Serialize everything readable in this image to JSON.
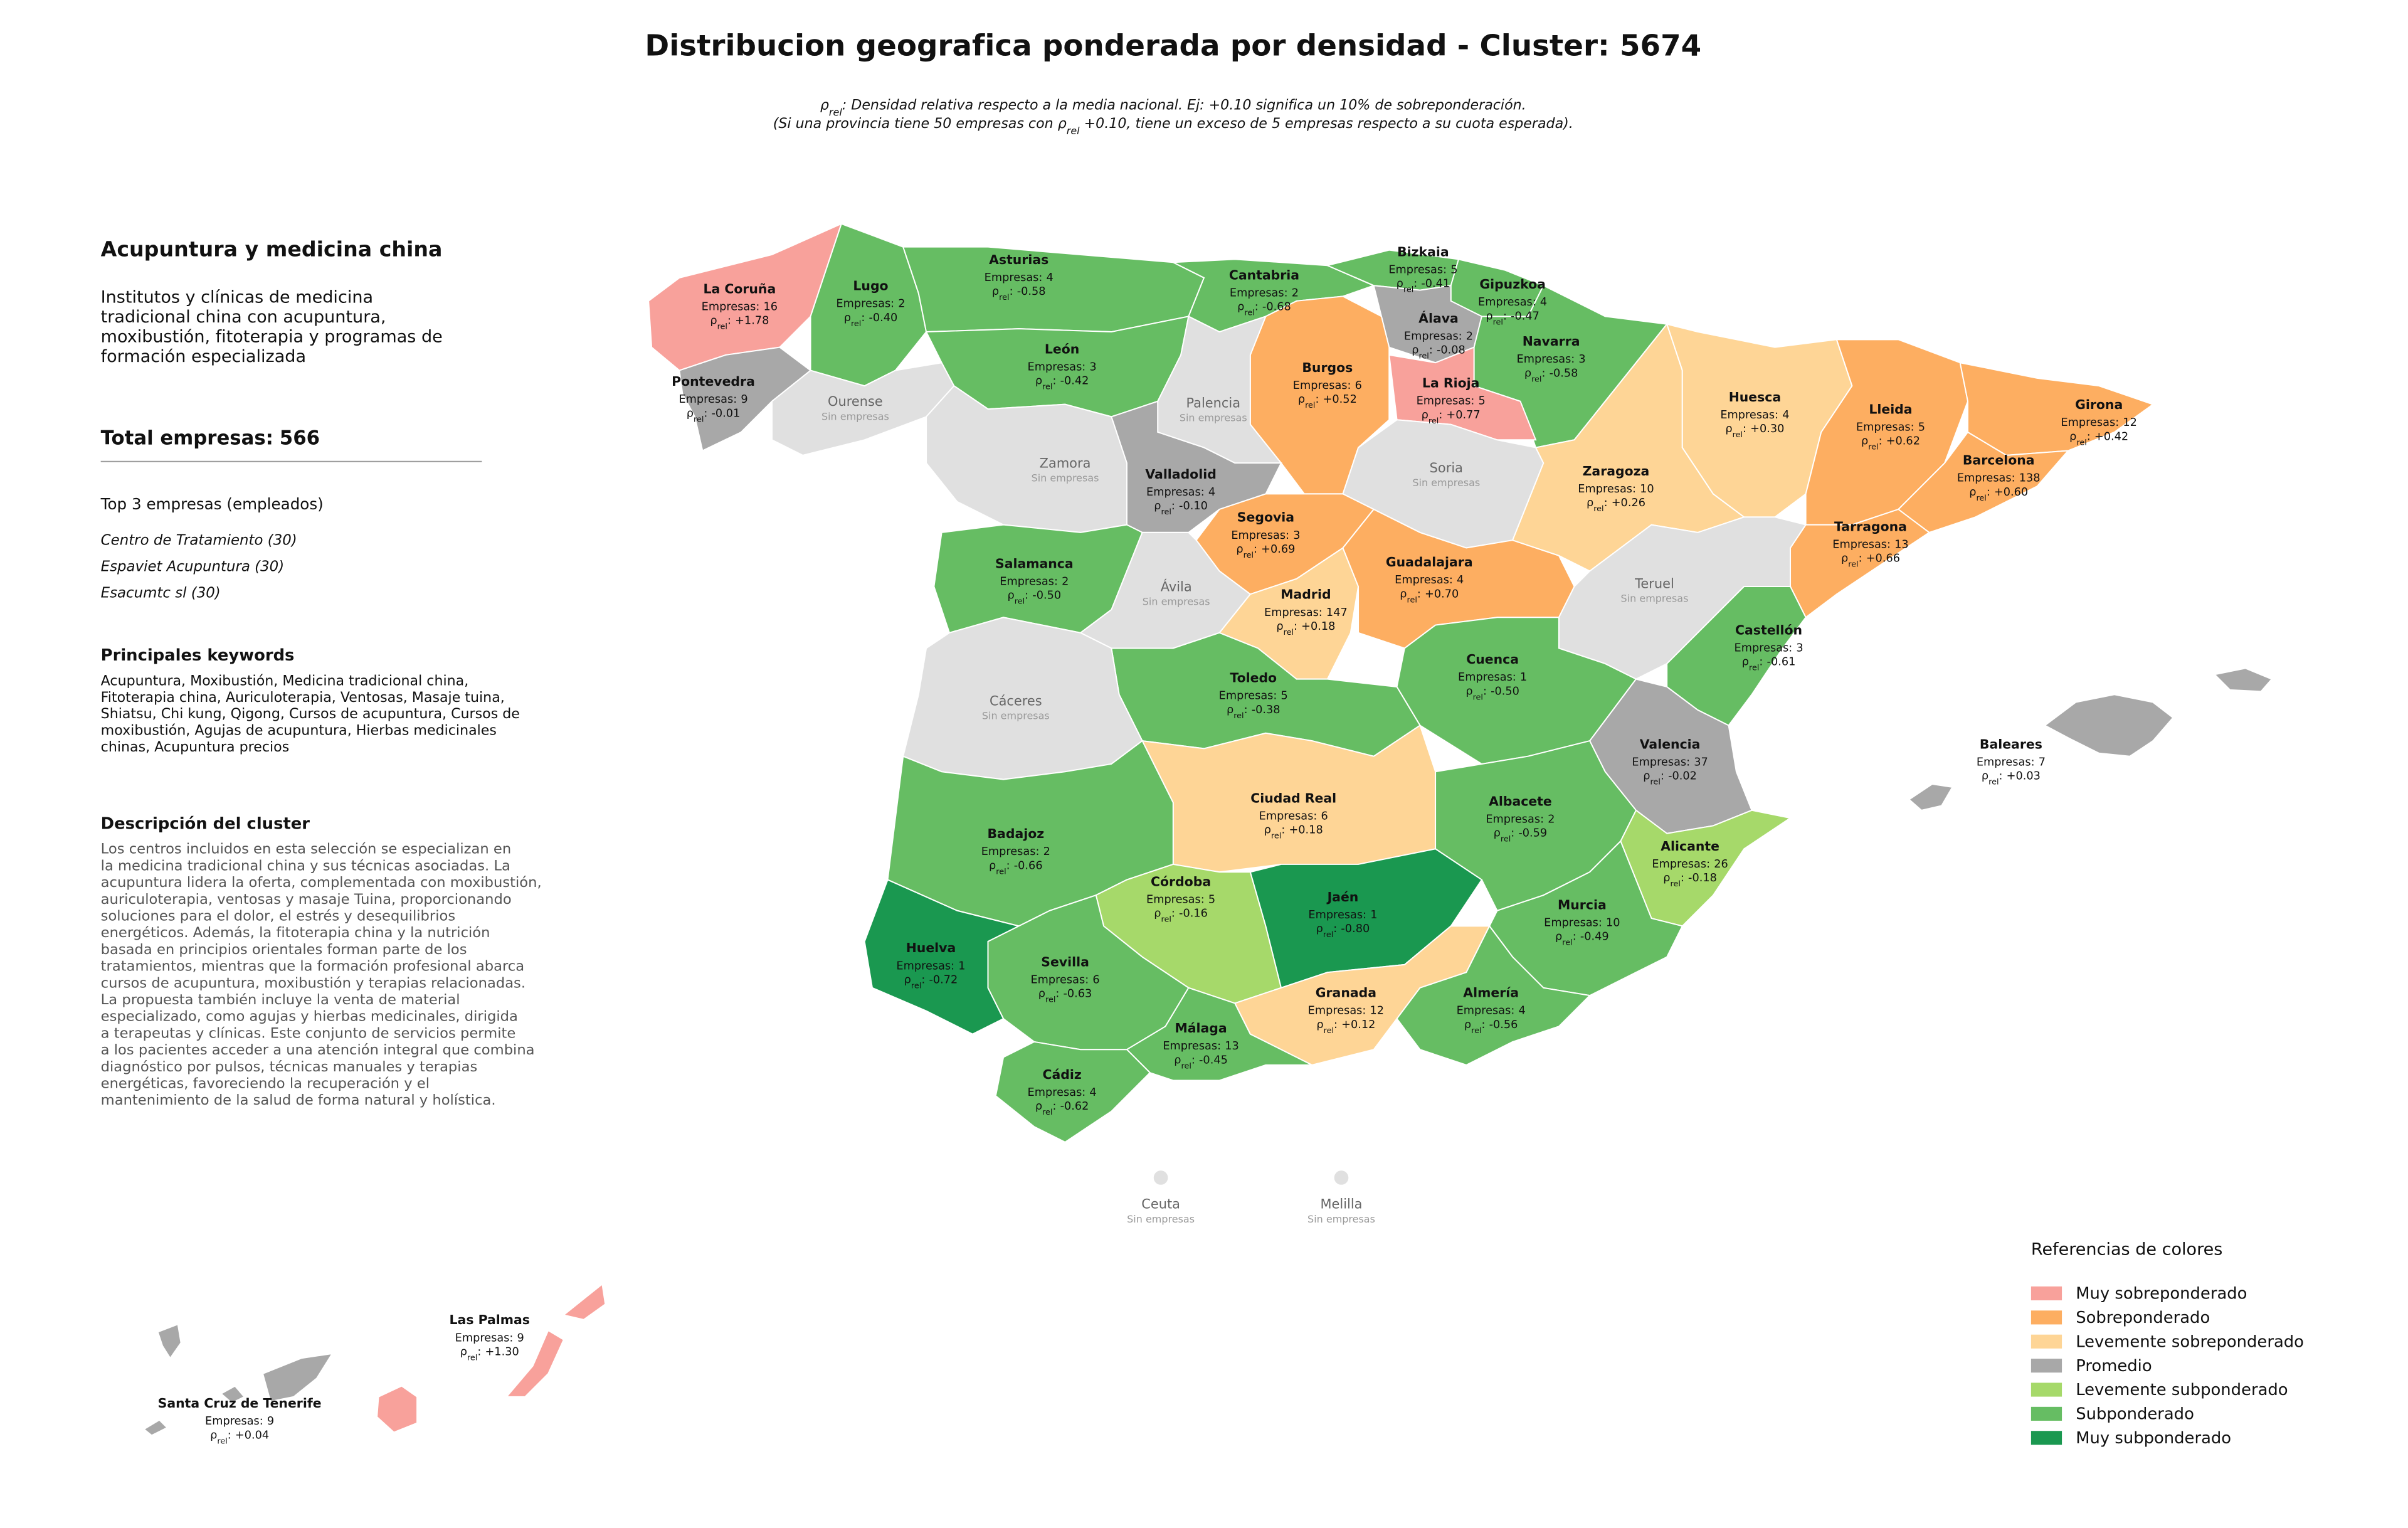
{
  "header": {
    "title": "Distribucion geografica ponderada por densidad - Cluster: 5674",
    "subtitle": [
      [
        {
          "text": "ρ"
        },
        {
          "text": "rel",
          "sub": true
        },
        {
          "text": ": Densidad relativa respecto a la media nacional. Ej: +0.10 significa un 10% de sobreponderación."
        }
      ],
      [
        {
          "text": "(Si una provincia tiene 50 empresas con "
        },
        {
          "text": "ρ"
        },
        {
          "text": "rel",
          "sub": true
        },
        {
          "text": " +0.10, tiene un exceso de 5 empresas respecto a su cuota esperada)."
        }
      ]
    ]
  },
  "panel": {
    "title": "Acupuntura y medicina china",
    "description": [
      "Institutos y clínicas de medicina",
      "tradicional china con acupuntura,",
      "moxibustión, fitoterapia y programas de",
      "formación especializada"
    ],
    "total_label": "Total empresas:",
    "total": 566,
    "top_heading": "Top 3 empresas (empleados)",
    "top": [
      "Centro de Tratamiento (30)",
      "Espaviet Acupuntura (30)",
      "Esacumtc sl (30)"
    ],
    "keywords_heading": "Principales keywords",
    "keywords": [
      "Acupuntura, Moxibustión, Medicina tradicional china,",
      "Fitoterapia china, Auriculoterapia, Ventosas, Masaje tuina,",
      "Shiatsu, Chi kung, Qigong, Cursos de acupuntura, Cursos de",
      "moxibustión, Agujas de acupuntura, Hierbas medicinales",
      "chinas, Acupuntura precios"
    ],
    "cluster_heading": "Descripción del cluster",
    "cluster_text": [
      "Los centros incluidos en esta selección se especializan en",
      "la medicina tradicional china y sus técnicas asociadas. La",
      "acupuntura lidera la oferta, complementada con moxibustión,",
      "auriculoterapia, ventosas y masaje Tuina, proporcionando",
      "soluciones para el dolor, el estrés y desequilibrios",
      "energéticos. Además, la fitoterapia china y la nutrición",
      "basada en principios orientales forman parte de los",
      "tratamientos, mientras que la formación profesional abarca",
      "cursos de acupuntura, moxibustión y terapias relacionadas.",
      "La propuesta también incluye la venta de material",
      "especializado, como agujas y hierbas medicinales, dirigida",
      "a terapeutas y clínicas. Este conjunto de servicios permite",
      "a los pacientes acceder a una atención integral que combina",
      "diagnóstico por pulsos, técnicas manuales y terapias",
      "energéticas, favoreciendo la recuperación y el",
      "mantenimiento de la salud de forma natural y holística."
    ]
  },
  "map": {
    "empresas_label": "Empresas:",
    "rho_symbol": "ρ",
    "rho_sub": "rel",
    "rho_sep": ":",
    "no_data_color": "#e0e0e0",
    "provinces": [
      {
        "name": "La Coruña",
        "empresas": 16,
        "rho": {
          "value": 1.78,
          "label": "+1.78"
        },
        "category": "Muy sobreponderado"
      },
      {
        "name": "Lugo",
        "empresas": 2,
        "rho": {
          "value": -0.4,
          "label": "-0.40"
        },
        "category": "Subponderado"
      },
      {
        "name": "Pontevedra",
        "empresas": 9,
        "rho": {
          "value": -0.01,
          "label": "-0.01"
        },
        "category": "Promedio"
      },
      {
        "name": "Ourense",
        "note": "Sin empresas"
      },
      {
        "name": "Asturias",
        "empresas": 4,
        "rho": {
          "value": -0.58,
          "label": "-0.58"
        },
        "category": "Subponderado"
      },
      {
        "name": "Cantabria",
        "empresas": 2,
        "rho": {
          "value": -0.68,
          "label": "-0.68"
        },
        "category": "Subponderado"
      },
      {
        "name": "Bizkaia",
        "empresas": 5,
        "rho": {
          "value": -0.41,
          "label": "-0.41"
        },
        "category": "Subponderado"
      },
      {
        "name": "Gipuzkoa",
        "empresas": 4,
        "rho": {
          "value": -0.47,
          "label": "-0.47"
        },
        "category": "Subponderado"
      },
      {
        "name": "Álava",
        "empresas": 2,
        "rho": {
          "value": -0.08,
          "label": "-0.08"
        },
        "category": "Promedio"
      },
      {
        "name": "Navarra",
        "empresas": 3,
        "rho": {
          "value": -0.58,
          "label": "-0.58"
        },
        "category": "Subponderado"
      },
      {
        "name": "La Rioja",
        "empresas": 5,
        "rho": {
          "value": 0.77,
          "label": "+0.77"
        },
        "category": "Muy sobreponderado"
      },
      {
        "name": "Burgos",
        "empresas": 6,
        "rho": {
          "value": 0.52,
          "label": "+0.52"
        },
        "category": "Sobreponderado"
      },
      {
        "name": "León",
        "empresas": 3,
        "rho": {
          "value": -0.42,
          "label": "-0.42"
        },
        "category": "Subponderado"
      },
      {
        "name": "Palencia",
        "note": "Sin empresas"
      },
      {
        "name": "Zamora",
        "note": "Sin empresas"
      },
      {
        "name": "Valladolid",
        "empresas": 4,
        "rho": {
          "value": -0.1,
          "label": "-0.10"
        },
        "category": "Promedio"
      },
      {
        "name": "Soria",
        "note": "Sin empresas"
      },
      {
        "name": "Segovia",
        "empresas": 3,
        "rho": {
          "value": 0.69,
          "label": "+0.69"
        },
        "category": "Sobreponderado"
      },
      {
        "name": "Salamanca",
        "empresas": 2,
        "rho": {
          "value": -0.5,
          "label": "-0.50"
        },
        "category": "Subponderado"
      },
      {
        "name": "Ávila",
        "note": "Sin empresas"
      },
      {
        "name": "Madrid",
        "empresas": 147,
        "rho": {
          "value": 0.18,
          "label": "+0.18"
        },
        "category": "Levemente sobreponderado"
      },
      {
        "name": "Guadalajara",
        "empresas": 4,
        "rho": {
          "value": 0.7,
          "label": "+0.70"
        },
        "category": "Sobreponderado"
      },
      {
        "name": "Zaragoza",
        "empresas": 10,
        "rho": {
          "value": 0.26,
          "label": "+0.26"
        },
        "category": "Levemente sobreponderado"
      },
      {
        "name": "Huesca",
        "empresas": 4,
        "rho": {
          "value": 0.3,
          "label": "+0.30"
        },
        "category": "Levemente sobreponderado"
      },
      {
        "name": "Lleida",
        "empresas": 5,
        "rho": {
          "value": 0.62,
          "label": "+0.62"
        },
        "category": "Sobreponderado"
      },
      {
        "name": "Girona",
        "empresas": 12,
        "rho": {
          "value": 0.42,
          "label": "+0.42"
        },
        "category": "Sobreponderado"
      },
      {
        "name": "Barcelona",
        "empresas": 138,
        "rho": {
          "value": 0.6,
          "label": "+0.60"
        },
        "category": "Sobreponderado"
      },
      {
        "name": "Tarragona",
        "empresas": 13,
        "rho": {
          "value": 0.66,
          "label": "+0.66"
        },
        "category": "Sobreponderado"
      },
      {
        "name": "Teruel",
        "note": "Sin empresas"
      },
      {
        "name": "Castellón",
        "empresas": 3,
        "rho": {
          "value": -0.61,
          "label": "-0.61"
        },
        "category": "Subponderado"
      },
      {
        "name": "Cuenca",
        "empresas": 1,
        "rho": {
          "value": -0.5,
          "label": "-0.50"
        },
        "category": "Subponderado"
      },
      {
        "name": "Valencia",
        "empresas": 37,
        "rho": {
          "value": -0.02,
          "label": "-0.02"
        },
        "category": "Promedio"
      },
      {
        "name": "Toledo",
        "empresas": 5,
        "rho": {
          "value": -0.38,
          "label": "-0.38"
        },
        "category": "Subponderado"
      },
      {
        "name": "Cáceres",
        "note": "Sin empresas"
      },
      {
        "name": "Ciudad Real",
        "empresas": 6,
        "rho": {
          "value": 0.18,
          "label": "+0.18"
        },
        "category": "Levemente sobreponderado"
      },
      {
        "name": "Albacete",
        "empresas": 2,
        "rho": {
          "value": -0.59,
          "label": "-0.59"
        },
        "category": "Subponderado"
      },
      {
        "name": "Badajoz",
        "empresas": 2,
        "rho": {
          "value": -0.66,
          "label": "-0.66"
        },
        "category": "Subponderado"
      },
      {
        "name": "Alicante",
        "empresas": 26,
        "rho": {
          "value": -0.18,
          "label": "-0.18"
        },
        "category": "Levemente subponderado"
      },
      {
        "name": "Córdoba",
        "empresas": 5,
        "rho": {
          "value": -0.16,
          "label": "-0.16"
        },
        "category": "Levemente subponderado"
      },
      {
        "name": "Jaén",
        "empresas": 1,
        "rho": {
          "value": -0.8,
          "label": "-0.80"
        },
        "category": "Muy subponderado"
      },
      {
        "name": "Murcia",
        "empresas": 10,
        "rho": {
          "value": -0.49,
          "label": "-0.49"
        },
        "category": "Subponderado"
      },
      {
        "name": "Huelva",
        "empresas": 1,
        "rho": {
          "value": -0.72,
          "label": "-0.72"
        },
        "category": "Muy subponderado"
      },
      {
        "name": "Sevilla",
        "empresas": 6,
        "rho": {
          "value": -0.63,
          "label": "-0.63"
        },
        "category": "Subponderado"
      },
      {
        "name": "Granada",
        "empresas": 12,
        "rho": {
          "value": 0.12,
          "label": "+0.12"
        },
        "category": "Levemente sobreponderado"
      },
      {
        "name": "Almería",
        "empresas": 4,
        "rho": {
          "value": -0.56,
          "label": "-0.56"
        },
        "category": "Subponderado"
      },
      {
        "name": "Málaga",
        "empresas": 13,
        "rho": {
          "value": -0.45,
          "label": "-0.45"
        },
        "category": "Subponderado"
      },
      {
        "name": "Cádiz",
        "empresas": 4,
        "rho": {
          "value": -0.62,
          "label": "-0.62"
        },
        "category": "Subponderado"
      },
      {
        "name": "Baleares",
        "empresas": 7,
        "rho": {
          "value": 0.03,
          "label": "+0.03"
        },
        "category": "Promedio"
      },
      {
        "name": "Las Palmas",
        "empresas": 9,
        "rho": {
          "value": 1.3,
          "label": "+1.30"
        },
        "category": "Muy sobreponderado"
      },
      {
        "name": "Santa Cruz de Tenerife",
        "empresas": 9,
        "rho": {
          "value": 0.04,
          "label": "+0.04"
        },
        "category": "Promedio"
      },
      {
        "name": "Ceuta",
        "note": "Sin empresas"
      },
      {
        "name": "Melilla",
        "note": "Sin empresas"
      }
    ]
  },
  "legend": {
    "title": "Referencias de colores",
    "items": [
      {
        "name": "Muy sobreponderado",
        "color": "#f8a19b"
      },
      {
        "name": "Sobreponderado",
        "color": "#fdae61"
      },
      {
        "name": "Levemente sobreponderado",
        "color": "#fed596"
      },
      {
        "name": "Promedio",
        "color": "#a8a8a8"
      },
      {
        "name": "Levemente subponderado",
        "color": "#a6d96a"
      },
      {
        "name": "Subponderado",
        "color": "#66bd63"
      },
      {
        "name": "Muy subponderado",
        "color": "#1a9850"
      }
    ]
  }
}
